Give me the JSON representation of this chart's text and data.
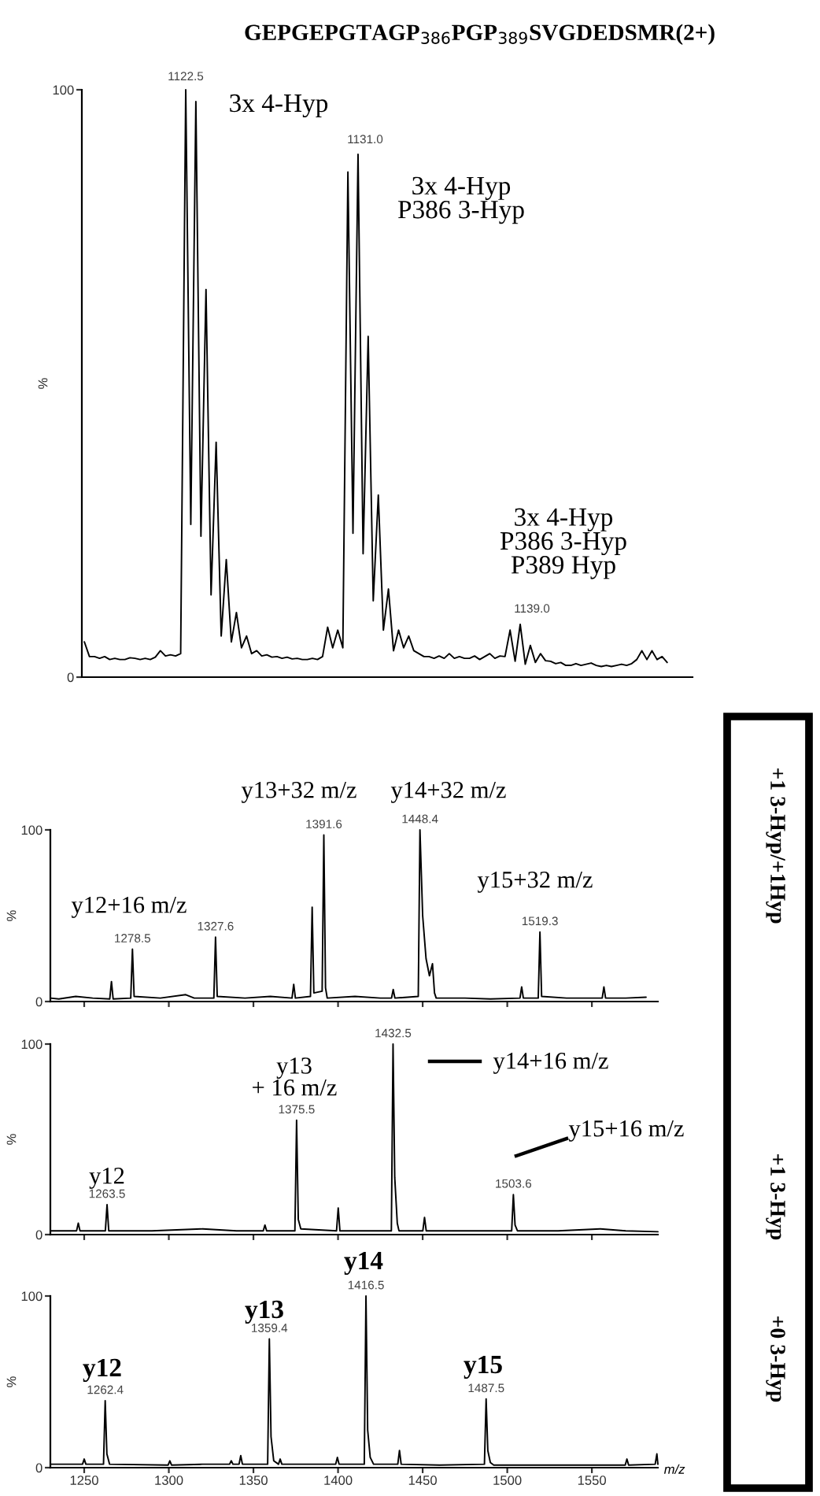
{
  "chart_data": [
    {
      "type": "line",
      "title": "GEPGEPGTAGP$_{386}$PGP$_{389}$SVGDEDSMR(2+)",
      "color": "#000000",
      "ylabel": "%",
      "ylim": [
        0,
        100
      ],
      "yticks": [
        0,
        100
      ],
      "tick_labels": "y",
      "categories": [
        null,
        null,
        null,
        null,
        null,
        null,
        null,
        null,
        null,
        null,
        null,
        null,
        null,
        null,
        null,
        null,
        null,
        null,
        null,
        null,
        null,
        null,
        null,
        null,
        null,
        null,
        null,
        null,
        null,
        null,
        null,
        null,
        null,
        null,
        null,
        null,
        null,
        null,
        null,
        null,
        null,
        null,
        null,
        null,
        null,
        null,
        null,
        null,
        null,
        null,
        null,
        null,
        null,
        null,
        null,
        null,
        null,
        null,
        null,
        null,
        null,
        null,
        null,
        null,
        null,
        null,
        null,
        null,
        null,
        null,
        null,
        null,
        null,
        null,
        null,
        null,
        null,
        null,
        null,
        null,
        null,
        null,
        null,
        null,
        null,
        null,
        null,
        null,
        null,
        null,
        null,
        null,
        null,
        null,
        null,
        null,
        null,
        null,
        null,
        null,
        null,
        null,
        null,
        null,
        null,
        null,
        null,
        null,
        null,
        null,
        null,
        null,
        null,
        null,
        null,
        null
      ],
      "values": [
        6,
        3.5,
        3.5,
        3.2,
        3.5,
        3,
        3.2,
        3,
        3,
        3.3,
        3.2,
        3,
        3.2,
        3,
        3.4,
        4.5,
        3.6,
        3.8,
        3.6,
        4,
        100,
        26,
        98,
        24,
        66,
        14,
        40,
        7,
        20,
        6,
        11,
        5,
        7,
        4,
        4.5,
        3.6,
        3.8,
        3.4,
        3.5,
        3.2,
        3.4,
        3.1,
        3.2,
        3,
        3,
        3.2,
        3,
        3.5,
        8.5,
        5,
        8,
        5,
        86,
        24.5,
        89,
        21,
        58,
        13,
        31,
        8,
        15,
        4.5,
        8,
        5,
        7,
        4.5,
        4,
        3.5,
        3.5,
        3.2,
        3.6,
        3.2,
        4,
        3.2,
        3.5,
        3.2,
        3.2,
        3.6,
        3,
        3.5,
        4,
        3.2,
        3.6,
        3.5,
        8,
        2.7,
        9,
        2.2,
        5.4,
        2.5,
        4,
        2.8,
        2.7,
        2.3,
        2.5,
        2,
        2,
        2.3,
        2,
        2.2,
        2.4,
        2,
        1.8,
        2,
        1.8,
        2,
        2.2,
        2,
        2.3,
        3,
        4.5,
        3,
        4.5,
        3,
        3.5,
        2.5
      ],
      "annotations": [
        "1122.5",
        "1131.0",
        "1139.0",
        "3x 4-Hyp",
        "3x 4-Hyp\nP386 3-Hyp",
        "3x 4-Hyp\nP386 3-Hyp\nP389 Hyp"
      ]
    },
    {
      "type": "line",
      "color": "#000000",
      "ylabel": "%",
      "xlim": [
        1230,
        1589
      ],
      "xticks": [
        1250,
        1300,
        1350,
        1400,
        1450,
        1500,
        1550
      ],
      "ylim": [
        0,
        100
      ],
      "yticks": [
        0,
        100
      ],
      "tick_labels": "y",
      "x": [
        1230,
        1235,
        1245,
        1255,
        1265.1,
        1266.1,
        1267.1,
        1277.5,
        1278.5,
        1279.5,
        1295,
        1310,
        1315,
        1326.6,
        1327.6,
        1328.6,
        1345,
        1360,
        1372.8,
        1373.8,
        1374.8,
        1383.7,
        1384.7,
        1385.7,
        1390.6,
        1391.6,
        1392.6,
        1393.6,
        1410,
        1425,
        1431.6,
        1432.6,
        1433.6,
        1447.4,
        1448.4,
        1450,
        1452,
        1454,
        1455.8,
        1457,
        1458,
        1475,
        1490,
        1507.5,
        1508.5,
        1509.5,
        1518.3,
        1519.3,
        1520.3,
        1535,
        1556.1,
        1557.1,
        1558.1,
        1570,
        1582
      ],
      "values": [
        2,
        1.5,
        3,
        2,
        1.5,
        11.6,
        1.5,
        2,
        30.5,
        3,
        2,
        4,
        2,
        2,
        37.5,
        3,
        2,
        3,
        2,
        10,
        2,
        3,
        55,
        5,
        6,
        97,
        8,
        2,
        3,
        2,
        2,
        7,
        2,
        3,
        100,
        50,
        25,
        15,
        22,
        5,
        2,
        2,
        1.5,
        2,
        8.5,
        2,
        2,
        40.5,
        3,
        2,
        2,
        8.5,
        2,
        2,
        2.5
      ],
      "annotations": [
        {
          "text": "1278.5",
          "x": 1278.5,
          "y": 30.5
        },
        {
          "text": "1327.6",
          "x": 1327.6,
          "y": 37.5
        },
        {
          "text": "1391.6",
          "x": 1391.6,
          "y": 97
        },
        {
          "text": "1448.4",
          "x": 1448.4,
          "y": 100
        },
        {
          "text": "1519.3",
          "x": 1519.3,
          "y": 40.5
        },
        "y12+16 m/z",
        "y13+32 m/z",
        "y14+32 m/z",
        "y15+32 m/z",
        "+1 3-Hyp/+1Hyp"
      ]
    },
    {
      "type": "line",
      "color": "#000000",
      "ylabel": "%",
      "xlim": [
        1230,
        1589
      ],
      "xticks": [
        1250,
        1300,
        1350,
        1400,
        1450,
        1500,
        1550
      ],
      "ylim": [
        0,
        100
      ],
      "yticks": [
        0,
        100
      ],
      "tick_labels": "y",
      "x": [
        1230,
        1245.5,
        1246.5,
        1247.5,
        1262.5,
        1263.5,
        1264.5,
        1290,
        1320,
        1340,
        1355.8,
        1356.8,
        1357.8,
        1374.5,
        1375.5,
        1376.5,
        1378,
        1399.1,
        1400.1,
        1401.1,
        1431.5,
        1432.5,
        1433.5,
        1435,
        1436,
        1450.1,
        1451.1,
        1452.1,
        1470,
        1485,
        1502.6,
        1503.6,
        1504.6,
        1506,
        1530,
        1555,
        1570,
        1589
      ],
      "values": [
        2,
        2,
        6,
        2,
        2,
        15.7,
        2,
        2,
        3,
        2,
        2,
        5,
        2,
        2,
        60,
        8,
        3,
        2,
        14,
        2,
        2,
        100,
        30,
        6,
        2,
        2,
        9,
        2,
        2,
        2,
        2,
        21,
        5,
        2,
        2,
        3,
        2,
        1.5
      ],
      "annotations": [
        {
          "text": "1263.5",
          "x": 1263.5,
          "y": 15.7
        },
        {
          "text": "1375.5",
          "x": 1375.5,
          "y": 60
        },
        {
          "text": "1432.5",
          "x": 1432.5,
          "y": 100
        },
        {
          "text": "1503.6",
          "x": 1503.6,
          "y": 21
        },
        "y12",
        "y13\n+ 16 m/z",
        "y14+16 m/z",
        "y15+16 m/z",
        "+1 3-Hyp"
      ]
    },
    {
      "type": "line",
      "color": "#000000",
      "xlabel": "m/z",
      "ylabel": "%",
      "xlim": [
        1230,
        1589
      ],
      "xticks": [
        1250,
        1300,
        1350,
        1400,
        1450,
        1500,
        1550
      ],
      "ylim": [
        0,
        100
      ],
      "yticks": [
        0,
        100
      ],
      "x": [
        1230,
        1249,
        1250,
        1251,
        1261.4,
        1262.4,
        1263.4,
        1265,
        1299.6,
        1300.6,
        1301.6,
        1320,
        1335.9,
        1336.9,
        1337.9,
        1341.5,
        1342.5,
        1343.5,
        1358.4,
        1359.4,
        1360.4,
        1362,
        1364.8,
        1365.8,
        1366.8,
        1398.6,
        1399.6,
        1400.6,
        1415.5,
        1416.5,
        1417.5,
        1419,
        1421,
        1435.3,
        1436.3,
        1437.3,
        1460,
        1486.5,
        1487.5,
        1488.5,
        1490,
        1492,
        1530,
        1569.7,
        1570.7,
        1571.7,
        1587.4,
        1588.4,
        1589
      ],
      "values": [
        2,
        2,
        5,
        2,
        2,
        39,
        8,
        2,
        1.5,
        4,
        1.5,
        2,
        2,
        4,
        2,
        2,
        7,
        2,
        2,
        75,
        18,
        4,
        2,
        5,
        2,
        2,
        6,
        2,
        2,
        100,
        22,
        6,
        2,
        2,
        10,
        2,
        1.5,
        2,
        40,
        10,
        3,
        1.5,
        1.5,
        1.5,
        5,
        1.5,
        2,
        8,
        2
      ],
      "annotations": [
        {
          "text": "1262.4",
          "x": 1262.4,
          "y": 39
        },
        {
          "text": "1359.4",
          "x": 1359.4,
          "y": 75
        },
        {
          "text": "1416.5",
          "x": 1416.5,
          "y": 100
        },
        {
          "text": "1487.5",
          "x": 1487.5,
          "y": 40
        },
        "y12",
        "y13",
        "y14",
        "y15",
        "+0 3-Hyp"
      ]
    }
  ]
}
